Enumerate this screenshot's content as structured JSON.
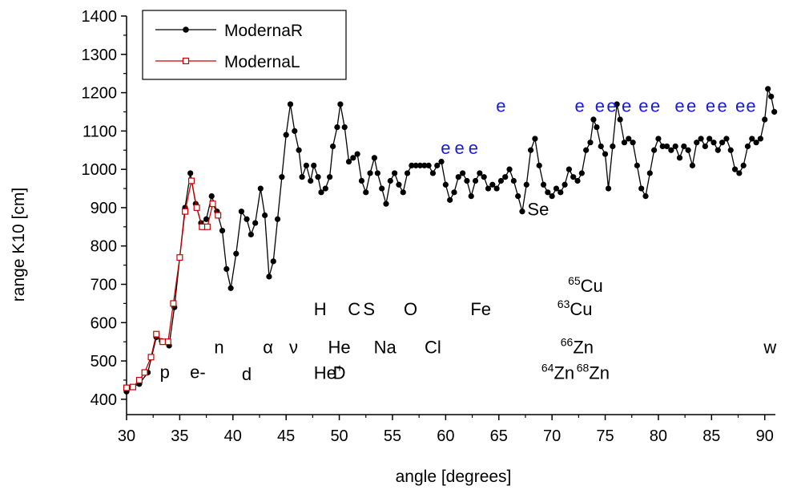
{
  "chart_data": {
    "type": "line",
    "xlabel": "angle [degrees]",
    "ylabel": "range K10 [cm]",
    "xlim": [
      30,
      91
    ],
    "ylim": [
      360,
      1400
    ],
    "x_ticks": [
      30,
      35,
      40,
      45,
      50,
      55,
      60,
      65,
      70,
      75,
      80,
      85,
      90
    ],
    "y_ticks": [
      400,
      500,
      600,
      700,
      800,
      900,
      1000,
      1100,
      1200,
      1300,
      1400
    ],
    "legend_position": "top-left",
    "colors": {
      "ModernaR": "#000000",
      "ModernaL": "#cc0000",
      "blue_labels": "#1a1adc"
    },
    "series": [
      {
        "name": "ModernaR",
        "marker": "filled-circle",
        "points": [
          [
            30.0,
            420
          ],
          [
            30.5,
            432
          ],
          [
            31.2,
            440
          ],
          [
            32.0,
            470
          ],
          [
            32.8,
            562
          ],
          [
            33.3,
            552
          ],
          [
            34.0,
            540
          ],
          [
            34.5,
            640
          ],
          [
            35.0,
            770
          ],
          [
            35.5,
            900
          ],
          [
            36.0,
            990
          ],
          [
            36.5,
            910
          ],
          [
            37.0,
            860
          ],
          [
            37.5,
            870
          ],
          [
            38.0,
            930
          ],
          [
            38.5,
            890
          ],
          [
            39.0,
            840
          ],
          [
            39.4,
            740
          ],
          [
            39.8,
            690
          ],
          [
            40.3,
            780
          ],
          [
            40.8,
            890
          ],
          [
            41.3,
            870
          ],
          [
            41.7,
            830
          ],
          [
            42.1,
            860
          ],
          [
            42.6,
            950
          ],
          [
            43.0,
            880
          ],
          [
            43.4,
            720
          ],
          [
            43.8,
            760
          ],
          [
            44.2,
            870
          ],
          [
            44.6,
            980
          ],
          [
            45.0,
            1090
          ],
          [
            45.4,
            1170
          ],
          [
            45.8,
            1100
          ],
          [
            46.2,
            1050
          ],
          [
            46.5,
            980
          ],
          [
            46.9,
            1010
          ],
          [
            47.3,
            970
          ],
          [
            47.6,
            1010
          ],
          [
            48.0,
            980
          ],
          [
            48.3,
            940
          ],
          [
            48.7,
            950
          ],
          [
            49.1,
            980
          ],
          [
            49.4,
            1060
          ],
          [
            49.8,
            1110
          ],
          [
            50.1,
            1170
          ],
          [
            50.5,
            1110
          ],
          [
            50.9,
            1020
          ],
          [
            51.3,
            1030
          ],
          [
            51.7,
            1040
          ],
          [
            52.1,
            970
          ],
          [
            52.5,
            940
          ],
          [
            52.9,
            990
          ],
          [
            53.3,
            1030
          ],
          [
            53.6,
            990
          ],
          [
            54.0,
            950
          ],
          [
            54.4,
            910
          ],
          [
            54.8,
            970
          ],
          [
            55.2,
            990
          ],
          [
            55.6,
            960
          ],
          [
            56.0,
            940
          ],
          [
            56.4,
            990
          ],
          [
            56.8,
            1010
          ],
          [
            57.2,
            1010
          ],
          [
            57.6,
            1010
          ],
          [
            58.0,
            1010
          ],
          [
            58.4,
            1010
          ],
          [
            58.8,
            990
          ],
          [
            59.2,
            1010
          ],
          [
            59.6,
            1020
          ],
          [
            60.0,
            960
          ],
          [
            60.4,
            920
          ],
          [
            60.8,
            940
          ],
          [
            61.2,
            980
          ],
          [
            61.6,
            990
          ],
          [
            62.0,
            970
          ],
          [
            62.4,
            930
          ],
          [
            62.8,
            970
          ],
          [
            63.2,
            990
          ],
          [
            63.6,
            980
          ],
          [
            64.0,
            950
          ],
          [
            64.4,
            960
          ],
          [
            64.8,
            950
          ],
          [
            65.2,
            970
          ],
          [
            65.6,
            980
          ],
          [
            66.0,
            1000
          ],
          [
            66.4,
            970
          ],
          [
            66.8,
            930
          ],
          [
            67.2,
            890
          ],
          [
            67.6,
            960
          ],
          [
            68.0,
            1050
          ],
          [
            68.4,
            1080
          ],
          [
            68.8,
            1010
          ],
          [
            69.2,
            960
          ],
          [
            69.6,
            940
          ],
          [
            70.0,
            930
          ],
          [
            70.4,
            950
          ],
          [
            70.8,
            940
          ],
          [
            71.2,
            960
          ],
          [
            71.6,
            1000
          ],
          [
            72.0,
            980
          ],
          [
            72.4,
            970
          ],
          [
            72.8,
            990
          ],
          [
            73.2,
            1050
          ],
          [
            73.6,
            1070
          ],
          [
            73.9,
            1130
          ],
          [
            74.2,
            1110
          ],
          [
            74.6,
            1060
          ],
          [
            75.0,
            1040
          ],
          [
            75.3,
            950
          ],
          [
            75.7,
            1060
          ],
          [
            76.1,
            1170
          ],
          [
            76.4,
            1130
          ],
          [
            76.8,
            1070
          ],
          [
            77.2,
            1080
          ],
          [
            77.6,
            1070
          ],
          [
            78.0,
            1010
          ],
          [
            78.4,
            950
          ],
          [
            78.8,
            930
          ],
          [
            79.2,
            990
          ],
          [
            79.6,
            1050
          ],
          [
            80.0,
            1080
          ],
          [
            80.4,
            1060
          ],
          [
            80.8,
            1060
          ],
          [
            81.2,
            1050
          ],
          [
            81.6,
            1060
          ],
          [
            82.0,
            1030
          ],
          [
            82.4,
            1060
          ],
          [
            82.8,
            1050
          ],
          [
            83.2,
            1010
          ],
          [
            83.6,
            1070
          ],
          [
            84.0,
            1080
          ],
          [
            84.4,
            1060
          ],
          [
            84.8,
            1080
          ]
        ],
        "points_tail": [
          [
            84.8,
            1080
          ],
          [
            85.2,
            1070
          ],
          [
            85.6,
            1050
          ],
          [
            86.0,
            1070
          ],
          [
            86.4,
            1080
          ],
          [
            86.8,
            1050
          ],
          [
            87.2,
            1000
          ],
          [
            87.6,
            990
          ],
          [
            88.0,
            1010
          ],
          [
            88.4,
            1060
          ],
          [
            88.8,
            1080
          ],
          [
            89.2,
            1070
          ],
          [
            89.6,
            1080
          ],
          [
            90.0,
            1130
          ],
          [
            90.3,
            1210
          ],
          [
            90.6,
            1190
          ],
          [
            90.9,
            1150
          ]
        ]
      },
      {
        "name": "ModernaL",
        "marker": "open-square",
        "points": [
          [
            30.0,
            430
          ],
          [
            30.6,
            432
          ],
          [
            31.2,
            450
          ],
          [
            31.7,
            470
          ],
          [
            32.3,
            510
          ],
          [
            32.8,
            570
          ],
          [
            33.4,
            550
          ],
          [
            33.9,
            550
          ],
          [
            34.4,
            650
          ],
          [
            35.0,
            770
          ],
          [
            35.5,
            890
          ],
          [
            36.1,
            970
          ],
          [
            36.6,
            900
          ],
          [
            37.1,
            850
          ],
          [
            37.6,
            850
          ],
          [
            38.1,
            910
          ],
          [
            38.6,
            880
          ]
        ]
      }
    ],
    "annotations": [
      {
        "text": "p",
        "x": 33.6,
        "y": 455,
        "color": "black"
      },
      {
        "text": "e-",
        "x": 36.7,
        "y": 455,
        "color": "black"
      },
      {
        "text": "n",
        "x": 38.7,
        "y": 520,
        "color": "black"
      },
      {
        "text": "d",
        "x": 41.3,
        "y": 450,
        "color": "black"
      },
      {
        "text": "α",
        "x": 43.3,
        "y": 520,
        "color": "black"
      },
      {
        "text": "ν",
        "x": 45.7,
        "y": 520,
        "color": "black"
      },
      {
        "text": "H",
        "x": 48.2,
        "y": 620,
        "color": "black"
      },
      {
        "text": "C",
        "x": 51.4,
        "y": 620,
        "color": "black"
      },
      {
        "text": "S",
        "x": 52.8,
        "y": 620,
        "color": "black"
      },
      {
        "text": "O",
        "x": 56.7,
        "y": 620,
        "color": "black"
      },
      {
        "text": "Fe",
        "x": 63.3,
        "y": 620,
        "color": "black"
      },
      {
        "text": "He",
        "x": 50.0,
        "y": 520,
        "color": "black"
      },
      {
        "text": "Na",
        "x": 54.3,
        "y": 520,
        "color": "black"
      },
      {
        "text": "Cl",
        "x": 58.8,
        "y": 520,
        "color": "black"
      },
      {
        "text": "D",
        "x": 50.0,
        "y": 453,
        "color": "black"
      },
      {
        "text": "Se",
        "x": 68.7,
        "y": 880,
        "color": "black"
      },
      {
        "text": "w",
        "x": 90.5,
        "y": 520,
        "color": "black"
      },
      {
        "text": "e",
        "x": 60.0,
        "y": 1040,
        "color": "blue"
      },
      {
        "text": "e",
        "x": 61.3,
        "y": 1040,
        "color": "blue"
      },
      {
        "text": "e",
        "x": 62.6,
        "y": 1040,
        "color": "blue"
      },
      {
        "text": "e",
        "x": 65.2,
        "y": 1150,
        "color": "blue"
      },
      {
        "text": "e",
        "x": 72.6,
        "y": 1150,
        "color": "blue"
      },
      {
        "text": "e",
        "x": 74.5,
        "y": 1150,
        "color": "blue"
      },
      {
        "text": "e",
        "x": 75.6,
        "y": 1150,
        "color": "blue"
      },
      {
        "text": "e",
        "x": 77.0,
        "y": 1150,
        "color": "blue"
      },
      {
        "text": "e",
        "x": 78.6,
        "y": 1150,
        "color": "blue"
      },
      {
        "text": "e",
        "x": 79.7,
        "y": 1150,
        "color": "blue"
      },
      {
        "text": "e",
        "x": 82.0,
        "y": 1150,
        "color": "blue"
      },
      {
        "text": "e",
        "x": 83.1,
        "y": 1150,
        "color": "blue"
      },
      {
        "text": "e",
        "x": 84.9,
        "y": 1150,
        "color": "blue"
      },
      {
        "text": "e",
        "x": 86.0,
        "y": 1150,
        "color": "blue"
      },
      {
        "text": "e",
        "x": 87.7,
        "y": 1150,
        "color": "blue"
      },
      {
        "text": "e",
        "x": 88.7,
        "y": 1150,
        "color": "blue"
      }
    ],
    "superscript_annotations": [
      {
        "base": "He",
        "sup": "+",
        "x": 47.6,
        "y": 453
      },
      {
        "base": "Cu",
        "sup": "65",
        "x": 71.5,
        "y": 680
      },
      {
        "base": "Cu",
        "sup": "63",
        "x": 70.5,
        "y": 620
      },
      {
        "base": "Zn",
        "sup": "66",
        "x": 70.8,
        "y": 520
      },
      {
        "base": "Zn",
        "sup": "64",
        "x": 69.0,
        "y": 453
      },
      {
        "base": "Zn",
        "sup": "68",
        "x": 72.3,
        "y": 453
      }
    ]
  }
}
